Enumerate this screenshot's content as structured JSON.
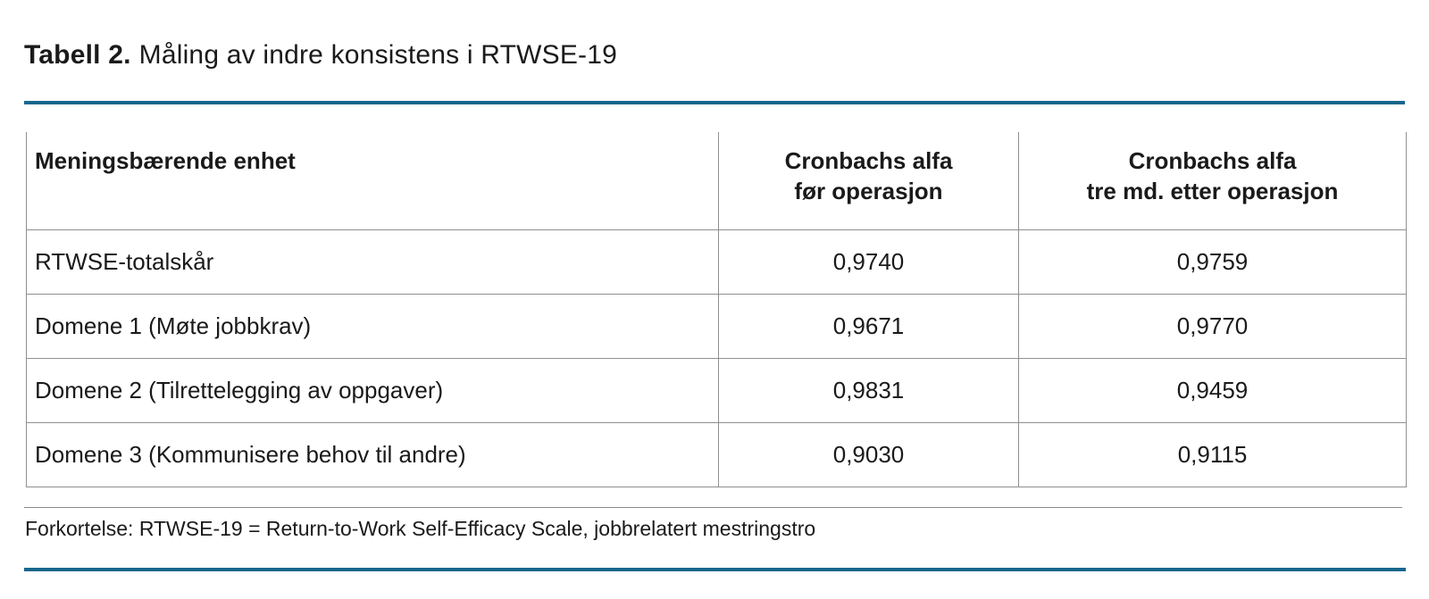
{
  "title": {
    "label": "Tabell 2.",
    "text": "Måling av indre konsistens i RTWSE-19"
  },
  "table": {
    "columns": [
      {
        "header": "Meningsbærende enhet"
      },
      {
        "header": "Cronbachs alfa\nfør operasjon"
      },
      {
        "header": "Cronbachs alfa\ntre md. etter operasjon"
      }
    ],
    "rows": [
      {
        "label": "RTWSE-totalskår",
        "alpha_pre": "0,9740",
        "alpha_post": "0,9759"
      },
      {
        "label": "Domene 1 (Møte jobbkrav)",
        "alpha_pre": "0,9671",
        "alpha_post": "0,9770"
      },
      {
        "label": "Domene 2 (Tilrettelegging av oppgaver)",
        "alpha_pre": "0,9831",
        "alpha_post": "0,9459"
      },
      {
        "label": "Domene 3 (Kommunisere behov til andre)",
        "alpha_pre": "0,9030",
        "alpha_post": "0,9115"
      }
    ]
  },
  "footnote": "Forkortelse: RTWSE-19 = Return-to-Work Self-Efficacy Scale, jobbrelatert mestringstro",
  "colors": {
    "accent_rule": "#17678C",
    "table_border": "#909090",
    "text": "#1A1A1A"
  }
}
